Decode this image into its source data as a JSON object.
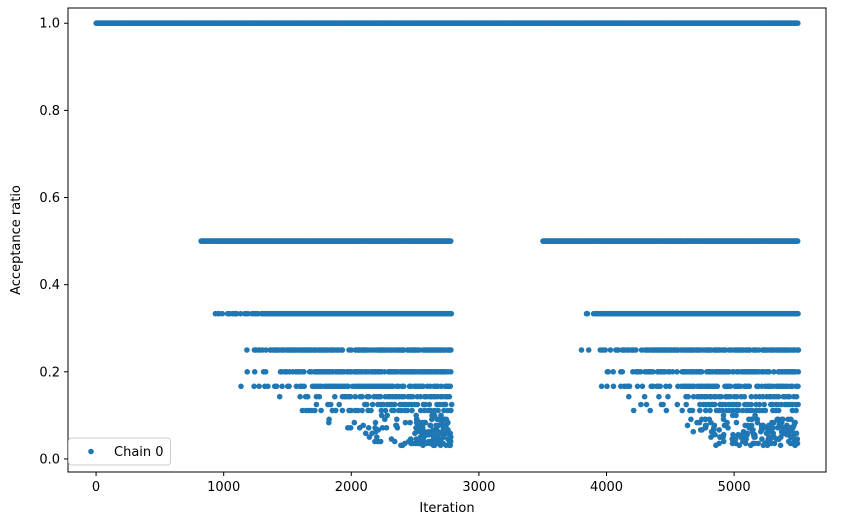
{
  "chart_data": {
    "type": "scatter",
    "title": "",
    "xlabel": "Iteration",
    "ylabel": "Acceptance ratio",
    "xlim": [
      -220,
      5720
    ],
    "ylim": [
      -0.03,
      1.035
    ],
    "xticks": [
      0,
      1000,
      2000,
      3000,
      4000,
      5000
    ],
    "yticks": [
      0.0,
      0.2,
      0.4,
      0.6,
      0.8,
      1.0
    ],
    "xtick_labels": [
      "0",
      "1000",
      "2000",
      "3000",
      "4000",
      "5000"
    ],
    "ytick_labels": [
      "0.0",
      "0.2",
      "0.4",
      "0.6",
      "0.8",
      "1.0"
    ],
    "grid": false,
    "legend_position": "lower-left",
    "color": "#1f77b4",
    "series": [
      {
        "name": "Chain 0",
        "bands": [
          {
            "y": 1.0,
            "ranges": [
              [
                0,
                5500
              ]
            ],
            "step": 3
          },
          {
            "y": 0.5,
            "ranges": [
              [
                820,
                2780
              ],
              [
                3500,
                5500
              ]
            ],
            "step": 6
          },
          {
            "y": 0.3333,
            "ranges": [
              [
                900,
                2780
              ],
              [
                3730,
                5500
              ]
            ],
            "step": 8,
            "sparse_before": [
              [
                900,
                1300
              ],
              [
                3730,
                4000
              ]
            ]
          },
          {
            "y": 0.25,
            "ranges": [
              [
                1100,
                2780
              ],
              [
                3780,
                5500
              ]
            ],
            "step": 10,
            "sparse_before": [
              [
                1100,
                1500
              ],
              [
                3780,
                4200
              ]
            ]
          },
          {
            "y": 0.2,
            "ranges": [
              [
                1120,
                2780
              ],
              [
                4000,
                5500
              ]
            ],
            "step": 12,
            "sparse_before": [
              [
                1120,
                1700
              ],
              [
                4000,
                4400
              ]
            ]
          },
          {
            "y": 0.1667,
            "ranges": [
              [
                1120,
                2780
              ],
              [
                3900,
                5500
              ]
            ],
            "step": 14,
            "sparse_before": [
              [
                1120,
                1800
              ],
              [
                3900,
                4500
              ]
            ]
          },
          {
            "y": 0.1429,
            "ranges": [
              [
                1400,
                2780
              ],
              [
                4100,
                5500
              ]
            ],
            "step": 18,
            "sparse_before": [
              [
                1400,
                2000
              ],
              [
                4100,
                4700
              ]
            ]
          },
          {
            "y": 0.125,
            "ranges": [
              [
                1700,
                2780
              ],
              [
                4200,
                5500
              ]
            ],
            "step": 22,
            "sparse_before": [
              [
                1700,
                2200
              ],
              [
                4200,
                4800
              ]
            ]
          },
          {
            "y": 0.1111,
            "ranges": [
              [
                1450,
                2780
              ],
              [
                4150,
                5500
              ]
            ],
            "step": 26,
            "sparse_before": [
              [
                1450,
                2200
              ],
              [
                4150,
                4900
              ]
            ]
          }
        ],
        "scatter_region": {
          "x_ranges": [
            [
              1800,
              2780
            ],
            [
              4500,
              5500
            ]
          ],
          "y_range": [
            0.02,
            0.1
          ],
          "count": 320,
          "dense_tail": [
            2500,
            2780
          ]
        }
      }
    ]
  }
}
